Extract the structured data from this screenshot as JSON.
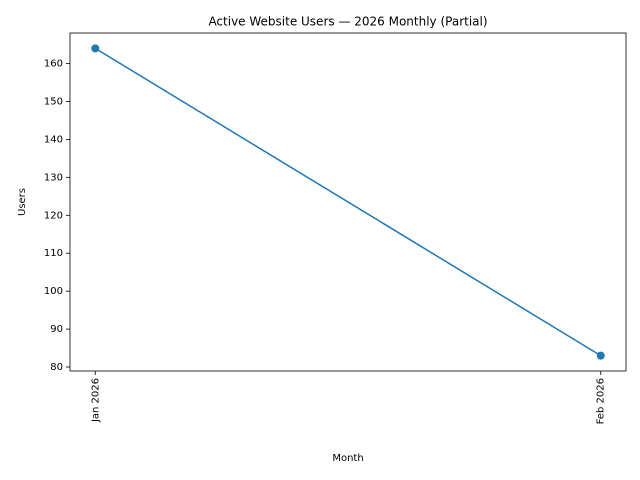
{
  "chart_data": {
    "type": "line",
    "title": "Active Website Users — 2026 Monthly (Partial)",
    "x_label": "Month",
    "y_label": "Users",
    "categories": [
      "Jan 2026",
      "Feb 2026"
    ],
    "values": [
      164,
      83
    ],
    "color": "#1f77b4",
    "ylim": [
      78.95,
      168.05
    ],
    "yticks": [
      80,
      90,
      100,
      110,
      120,
      130,
      140,
      150,
      160
    ],
    "grid": false
  }
}
